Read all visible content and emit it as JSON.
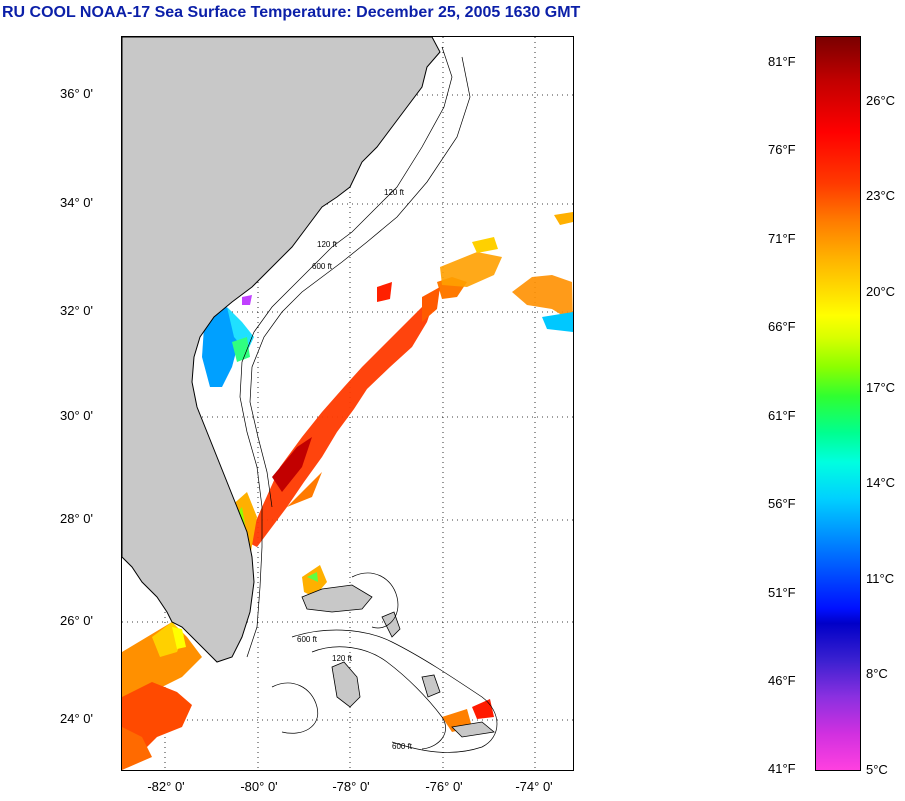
{
  "title": "RU COOL  NOAA-17  Sea Surface Temperature:  December 25, 2005 1630 GMT",
  "map": {
    "lat_labels": [
      "36° 0'",
      "34° 0'",
      "32° 0'",
      "30° 0'",
      "28° 0'",
      "26° 0'",
      "24° 0'"
    ],
    "lon_labels": [
      "-82° 0'",
      "-80° 0'",
      "-78° 0'",
      "-76° 0'",
      "-74° 0'"
    ],
    "land_color": "#c8c8c8",
    "isobath_labels": [
      "120 ft",
      "600 ft"
    ]
  },
  "colorbar": {
    "fahrenheit_labels": [
      "81°F",
      "76°F",
      "71°F",
      "66°F",
      "61°F",
      "56°F",
      "51°F",
      "46°F",
      "41°F"
    ],
    "celsius_labels": [
      "26°C",
      "23°C",
      "20°C",
      "17°C",
      "14°C",
      "11°C",
      "8°C",
      "5°C"
    ]
  }
}
